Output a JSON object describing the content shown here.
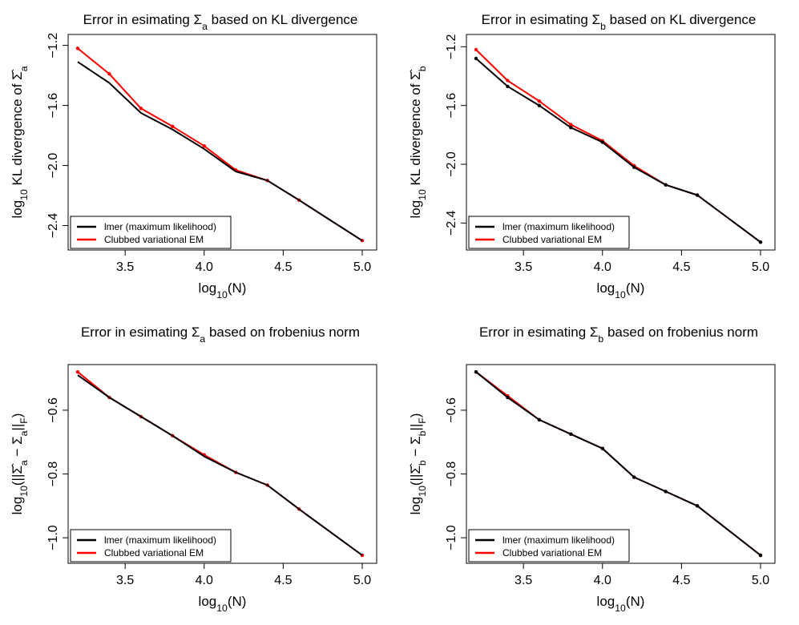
{
  "legend": {
    "items": [
      {
        "label": "lmer (maximum likelihood)",
        "color": "#000000"
      },
      {
        "label": "Clubbed variational EM",
        "color": "#ff0000"
      }
    ],
    "placement": "bottom-left"
  },
  "chart_data": [
    {
      "type": "line",
      "title": "Error in esimating Σa based on KL divergence",
      "xlabel": "log10(N)",
      "ylabel": "log10 KL divergence of Σ̂a",
      "xlim": [
        3.2,
        5.0
      ],
      "ylim": [
        -2.52,
        -1.17
      ],
      "xticks": [
        3.5,
        4.0,
        4.5,
        5.0
      ],
      "xtick_labels": [
        "3.5",
        "4.0",
        "4.5",
        "5.0"
      ],
      "yticks": [
        -1.2,
        -1.6,
        -2.0,
        -2.4
      ],
      "ytick_labels": [
        "−1.2",
        "−1.6",
        "−2.0",
        "−2.4"
      ],
      "x": [
        3.2,
        3.4,
        3.6,
        3.8,
        4.0,
        4.2,
        4.4,
        4.6,
        5.0
      ],
      "series": [
        {
          "name": "lmer (maximum likelihood)",
          "color": "#000000",
          "markers": false,
          "values": [
            -1.31,
            -1.45,
            -1.65,
            -1.76,
            -1.89,
            -2.04,
            -2.1,
            -2.23,
            -2.5
          ]
        },
        {
          "name": "Clubbed variational EM",
          "color": "#ff0000",
          "markers": true,
          "values": [
            -1.22,
            -1.39,
            -1.62,
            -1.74,
            -1.87,
            -2.03,
            -2.1,
            -2.23,
            -2.5
          ]
        }
      ],
      "grid": false
    },
    {
      "type": "line",
      "title": "Error in esimating Σb based on KL divergence",
      "xlabel": "log10(N)",
      "ylabel": "log10 KL divergence of Σ̂b",
      "xlim": [
        3.2,
        5.0
      ],
      "ylim": [
        -2.54,
        -1.16
      ],
      "xticks": [
        3.5,
        4.0,
        4.5,
        5.0
      ],
      "xtick_labels": [
        "3.5",
        "4.0",
        "4.5",
        "5.0"
      ],
      "yticks": [
        -1.2,
        -1.6,
        -2.0,
        -2.4
      ],
      "ytick_labels": [
        "−1.2",
        "−1.6",
        "−2.0",
        "−2.4"
      ],
      "x": [
        3.2,
        3.4,
        3.6,
        3.8,
        4.0,
        4.2,
        4.4,
        4.6,
        5.0
      ],
      "series": [
        {
          "name": "lmer (maximum likelihood)",
          "color": "#000000",
          "markers": true,
          "values": [
            -1.28,
            -1.47,
            -1.6,
            -1.75,
            -1.85,
            -2.02,
            -2.14,
            -2.21,
            -2.53
          ]
        },
        {
          "name": "Clubbed variational EM",
          "color": "#ff0000",
          "markers": true,
          "values": [
            -1.22,
            -1.43,
            -1.57,
            -1.73,
            -1.84,
            -2.01,
            -2.14,
            -2.21,
            -2.53
          ]
        }
      ],
      "grid": false
    },
    {
      "type": "line",
      "title": "Error in esimating Σa based on frobenius norm",
      "xlabel": "log10(N)",
      "ylabel": "log10(||Σ̂a − Σa||F)",
      "xlim": [
        3.2,
        5.0
      ],
      "ylim": [
        -1.06,
        -0.477
      ],
      "xticks": [
        3.5,
        4.0,
        4.5,
        5.0
      ],
      "xtick_labels": [
        "3.5",
        "4.0",
        "4.5",
        "5.0"
      ],
      "yticks": [
        -0.6,
        -0.8,
        -1.0
      ],
      "ytick_labels": [
        "−0.6",
        "−0.8",
        "−1.0"
      ],
      "x": [
        3.2,
        3.4,
        3.6,
        3.8,
        4.0,
        4.2,
        4.4,
        4.6,
        5.0
      ],
      "series": [
        {
          "name": "lmer (maximum likelihood)",
          "color": "#000000",
          "markers": false,
          "values": [
            -0.49,
            -0.56,
            -0.62,
            -0.68,
            -0.745,
            -0.795,
            -0.835,
            -0.91,
            -1.055
          ]
        },
        {
          "name": "Clubbed variational EM",
          "color": "#ff0000",
          "markers": true,
          "values": [
            -0.48,
            -0.56,
            -0.62,
            -0.68,
            -0.74,
            -0.795,
            -0.835,
            -0.91,
            -1.055
          ]
        }
      ],
      "grid": false
    },
    {
      "type": "line",
      "title": "Error in esimating Σb based on frobenius norm",
      "xlabel": "log10(N)",
      "ylabel": "log10(||Σ̂b − Σb||F)",
      "xlim": [
        3.2,
        5.0
      ],
      "ylim": [
        -1.06,
        -0.477
      ],
      "xticks": [
        3.5,
        4.0,
        4.5,
        5.0
      ],
      "xtick_labels": [
        "3.5",
        "4.0",
        "4.5",
        "5.0"
      ],
      "yticks": [
        -0.6,
        -0.8,
        -1.0
      ],
      "ytick_labels": [
        "−0.6",
        "−0.8",
        "−1.0"
      ],
      "x": [
        3.2,
        3.4,
        3.6,
        3.8,
        4.0,
        4.2,
        4.4,
        4.6,
        5.0
      ],
      "series": [
        {
          "name": "lmer (maximum likelihood)",
          "color": "#000000",
          "markers": true,
          "values": [
            -0.48,
            -0.56,
            -0.63,
            -0.675,
            -0.72,
            -0.81,
            -0.855,
            -0.9,
            -1.055
          ]
        },
        {
          "name": "Clubbed variational EM",
          "color": "#ff0000",
          "markers": true,
          "values": [
            -0.48,
            -0.555,
            -0.63,
            -0.675,
            -0.72,
            -0.81,
            -0.855,
            -0.9,
            -1.055
          ]
        }
      ],
      "grid": false
    }
  ]
}
